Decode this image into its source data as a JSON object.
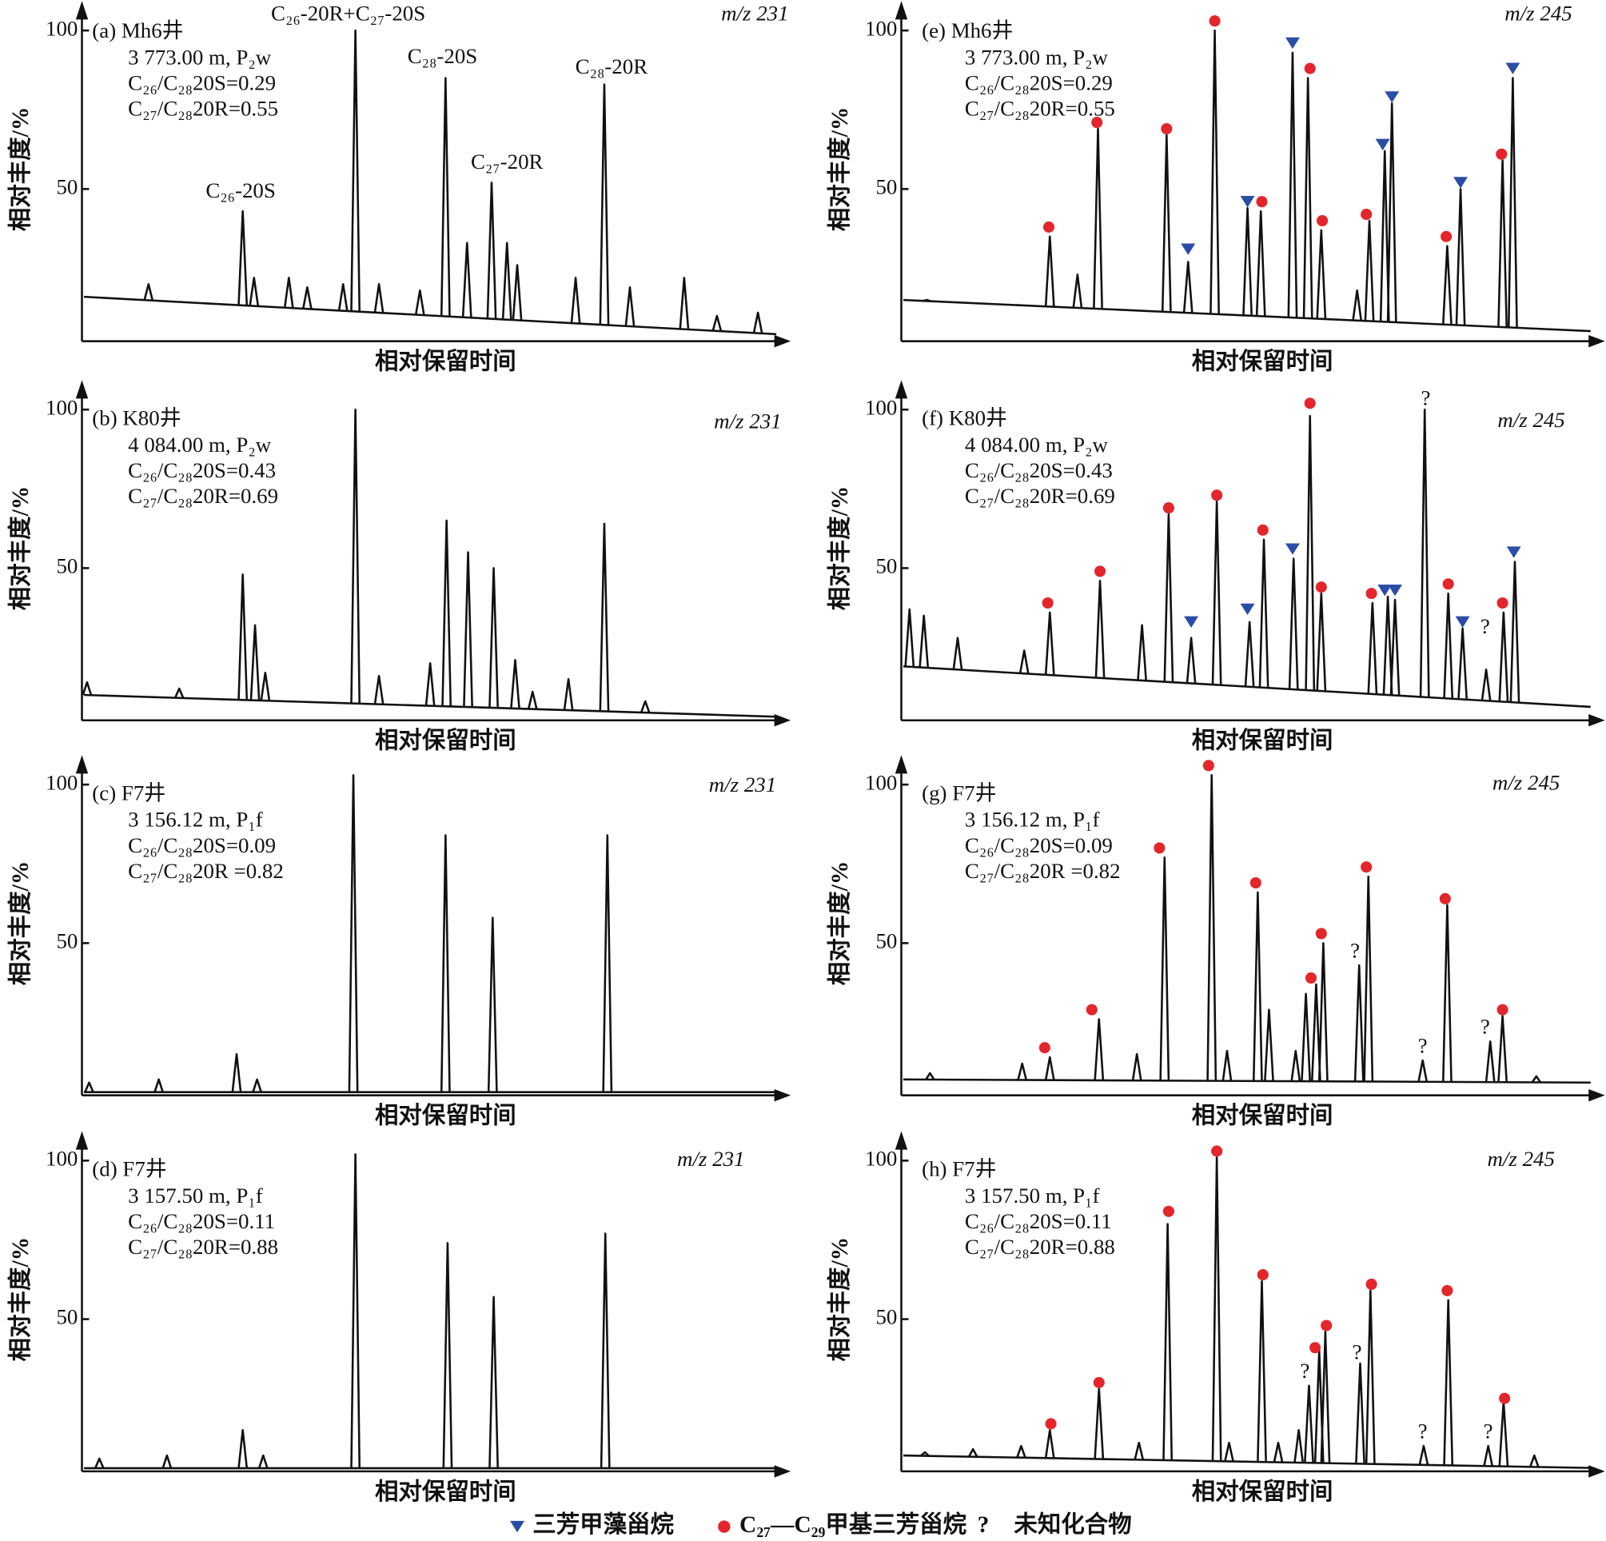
{
  "legend": [
    {
      "name": "三芳甲藻甾烷",
      "color": "#2a4ea6",
      "symbol": "triangle"
    },
    {
      "name": "C₂₇—C₂₉甲基三芳甾烷",
      "color": "#e3262b",
      "symbol": "dot"
    },
    {
      "name": "未知化合物",
      "symbol": "?"
    }
  ],
  "chart_data": [
    {
      "type": "line",
      "label": "(a) Mh6井",
      "info": [
        "3 773.00 m, P₂w",
        "C₂₆/C₂₈20S=0.29",
        "C₂₇/C₂₈20R=0.55"
      ],
      "ion": "m/z 231",
      "xlabel": "相对保留时间",
      "ylabel": "相对丰度/%",
      "xlim": [
        0,
        690
      ],
      "ylim": [
        2,
        108
      ],
      "yticks": [
        50,
        100
      ],
      "baseline": [
        16,
        4
      ],
      "peaks": {
        "x": [
          65,
          157,
          168,
          202,
          220,
          255,
          267,
          290,
          330,
          355,
          376,
          400,
          415,
          425,
          482,
          510,
          535,
          588,
          620,
          660
        ],
        "values": [
          20,
          43,
          22,
          22,
          19,
          20,
          100,
          20,
          18,
          85,
          33,
          52,
          33,
          26,
          22,
          83,
          19,
          22,
          10,
          11
        ]
      },
      "annotations": [
        "C₂₆-20S",
        "C₂₆-20R+C₂₇-20S",
        "C₂₈-20S",
        "C₂₇-20R",
        "C₂₈-20R"
      ]
    },
    {
      "type": "line",
      "label": "(b) K80井",
      "info": [
        "4 084.00 m, P₂w",
        "C₂₆/C₂₈20S=0.43",
        "C₂₇/C₂₈20R=0.69"
      ],
      "ion": "m/z 231",
      "xlabel": "相对保留时间",
      "ylabel": "相对丰度/%",
      "xlim": [
        0,
        690
      ],
      "ylim": [
        2,
        108
      ],
      "yticks": [
        50,
        100
      ],
      "baseline": [
        10,
        3
      ],
      "peaks": {
        "x": [
          5,
          95,
          157,
          169,
          179,
          267,
          290,
          340,
          356,
          377,
          402,
          423,
          440,
          475,
          510,
          550
        ],
        "values": [
          14,
          12,
          48,
          32,
          17,
          100,
          16,
          20,
          65,
          55,
          50,
          21,
          11,
          15,
          64,
          8
        ]
      }
    },
    {
      "type": "line",
      "label": "(c) F7井",
      "info": [
        "3 156.12 m, P₁f",
        "C₂₆/C₂₈20S=0.09",
        "C₂₇/C₂₈20R =0.82"
      ],
      "ion": "m/z 231",
      "xlabel": "相对保留时间",
      "ylabel": "相对丰度/%",
      "xlim": [
        0,
        690
      ],
      "ylim": [
        2,
        108
      ],
      "yticks": [
        50,
        100
      ],
      "baseline": [
        3,
        3
      ],
      "peaks": {
        "x": [
          7,
          75,
          151,
          171,
          265,
          355,
          401,
          513
        ],
        "values": [
          6,
          7,
          15,
          7,
          103,
          84,
          58,
          84
        ]
      }
    },
    {
      "type": "line",
      "label": "(d) F7井",
      "info": [
        "3 157.50 m, P₁f",
        "C₂₆/C₂₈20S=0.11",
        "C₂₇/C₂₈20R=0.88"
      ],
      "ion": "m/z 231",
      "xlabel": "相对保留时间",
      "ylabel": "相对丰度/%",
      "xlim": [
        0,
        690
      ],
      "ylim": [
        2,
        108
      ],
      "yticks": [
        50,
        100
      ],
      "baseline": [
        3,
        3
      ],
      "peaks": {
        "x": [
          17,
          83,
          157,
          177,
          267,
          357,
          402,
          511
        ],
        "values": [
          6,
          7,
          15,
          7,
          102,
          74,
          57,
          77
        ]
      }
    },
    {
      "type": "line",
      "label": "(e) Mh6井",
      "info": [
        "3 773.00 m, P₂w",
        "C₂₆/C₂₈20S=0.29",
        "C₂₇/C₂₈20R=0.55"
      ],
      "ion": "m/z 245",
      "xlabel": "相对保留时间",
      "ylabel": "相对丰度/%",
      "xlim": [
        0,
        685
      ],
      "ylim": [
        2,
        108
      ],
      "yticks": [
        50,
        100
      ],
      "baseline": [
        15,
        5
      ],
      "peaks": {
        "x": [
          25,
          145,
          172,
          192,
          259,
          280,
          306,
          338,
          351,
          382,
          397,
          410,
          445,
          457,
          472,
          479,
          533,
          546,
          587,
          597
        ],
        "values": [
          15,
          35,
          23,
          69,
          67,
          27,
          100,
          44,
          43,
          93,
          85,
          37,
          18,
          40,
          62,
          77,
          32,
          50,
          59,
          85
        ]
      },
      "markers": [
        {
          "x": [
            280,
            338,
            382,
            470,
            479,
            546,
            597
          ],
          "values": [
            31,
            46,
            96,
            64,
            79,
            52,
            88
          ]
        },
        {
          "x": [
            144,
            191,
            259,
            306,
            352,
            399,
            411,
            454,
            532,
            586
          ],
          "values": [
            38,
            71,
            69,
            103,
            46,
            88,
            40,
            42,
            35,
            61
          ]
        },
        {
          "x": [],
          "values": []
        }
      ]
    },
    {
      "type": "line",
      "label": "(f) K80井",
      "info": [
        "4 084.00 m, P₂w",
        "C₂₆/C₂₈20S=0.43",
        "C₂₇/C₂₈20R=0.69"
      ],
      "ion": "m/z 245",
      "xlabel": "相对保留时间",
      "ylabel": "相对丰度/%",
      "xlim": [
        0,
        685
      ],
      "ylim": [
        2,
        108
      ],
      "yticks": [
        50,
        100
      ],
      "baseline": [
        19,
        6
      ],
      "peaks": {
        "x": [
          8,
          22,
          55,
          120,
          145,
          194,
          235,
          261,
          283,
          308,
          340,
          354,
          383,
          399,
          410,
          460,
          475,
          482,
          511,
          534,
          548,
          571,
          588,
          599
        ],
        "values": [
          37,
          35,
          28,
          24,
          36,
          46,
          32,
          67,
          28,
          71,
          33,
          59,
          53,
          98,
          42,
          39,
          41,
          40,
          100,
          42,
          31,
          18,
          36,
          52
        ]
      },
      "markers": [
        {
          "x": [
            283,
            338,
            382,
            472,
            482,
            548,
            598
          ],
          "values": [
            33,
            37,
            56,
            43,
            43,
            33,
            55
          ]
        },
        {
          "x": [
            143,
            194,
            261,
            308,
            353,
            399,
            410,
            459,
            534,
            587
          ],
          "values": [
            39,
            49,
            69,
            73,
            62,
            102,
            44,
            42,
            45,
            39
          ]
        },
        {
          "x": [
            512,
            570
          ],
          "values": [
            103,
            31
          ]
        }
      ]
    },
    {
      "type": "line",
      "label": "(g) F7井",
      "info": [
        "3 156.12 m, P₁f",
        "C₂₆/C₂₈20S=0.09",
        "C₂₇/C₂₈20R =0.82"
      ],
      "ion": "m/z 245",
      "xlabel": "相对保留时间",
      "ylabel": "相对丰度/%",
      "xlim": [
        0,
        685
      ],
      "ylim": [
        2,
        108
      ],
      "yticks": [
        50,
        100
      ],
      "baseline": [
        7,
        6
      ],
      "peaks": {
        "x": [
          28,
          118,
          145,
          193,
          230,
          257,
          303,
          318,
          348,
          359,
          385,
          395,
          405,
          412,
          447,
          456,
          509,
          533,
          575,
          587,
          620
        ],
        "values": [
          9,
          12,
          14,
          26,
          15,
          77,
          103,
          16,
          66,
          29,
          16,
          34,
          37,
          50,
          43,
          71,
          13,
          62,
          19,
          27,
          8
        ]
      },
      "markers": [
        {
          "x": [],
          "values": []
        },
        {
          "x": [
            140,
            186,
            252,
            300,
            346,
            400,
            410,
            454,
            531,
            587
          ],
          "values": [
            17,
            29,
            80,
            106,
            69,
            39,
            53,
            74,
            64,
            29
          ]
        },
        {
          "x": [
            443,
            509,
            570
          ],
          "values": [
            47,
            17,
            23
          ]
        }
      ]
    },
    {
      "type": "line",
      "label": "(h) F7井",
      "info": [
        "3 157.50 m, P₁f",
        "C₂₆/C₂₈20S=0.11",
        "C₂₇/C₂₈20R=0.88"
      ],
      "ion": "m/z 245",
      "xlabel": "相对保留时间",
      "ylabel": "相对丰度/%",
      "xlim": [
        0,
        685
      ],
      "ylim": [
        2,
        108
      ],
      "yticks": [
        50,
        100
      ],
      "baseline": [
        7,
        3
      ],
      "peaks": {
        "x": [
          23,
          70,
          117,
          145,
          193,
          232,
          260,
          308,
          320,
          352,
          368,
          388,
          398,
          408,
          414,
          448,
          458,
          510,
          534,
          573,
          588,
          618
        ],
        "values": [
          8,
          9,
          10,
          15,
          28,
          11,
          80,
          101,
          11,
          62,
          11,
          15,
          29,
          40,
          46,
          36,
          59,
          10,
          56,
          10,
          24,
          7
        ]
      },
      "markers": [
        {
          "x": [],
          "values": []
        },
        {
          "x": [
            146,
            193,
            261,
            308,
            353,
            404,
            415,
            459,
            533,
            589
          ],
          "values": [
            17,
            30,
            84,
            103,
            64,
            41,
            48,
            61,
            59,
            25
          ]
        },
        {
          "x": [
            394,
            445,
            509,
            573
          ],
          "values": [
            33,
            39,
            14,
            14
          ]
        }
      ]
    }
  ]
}
